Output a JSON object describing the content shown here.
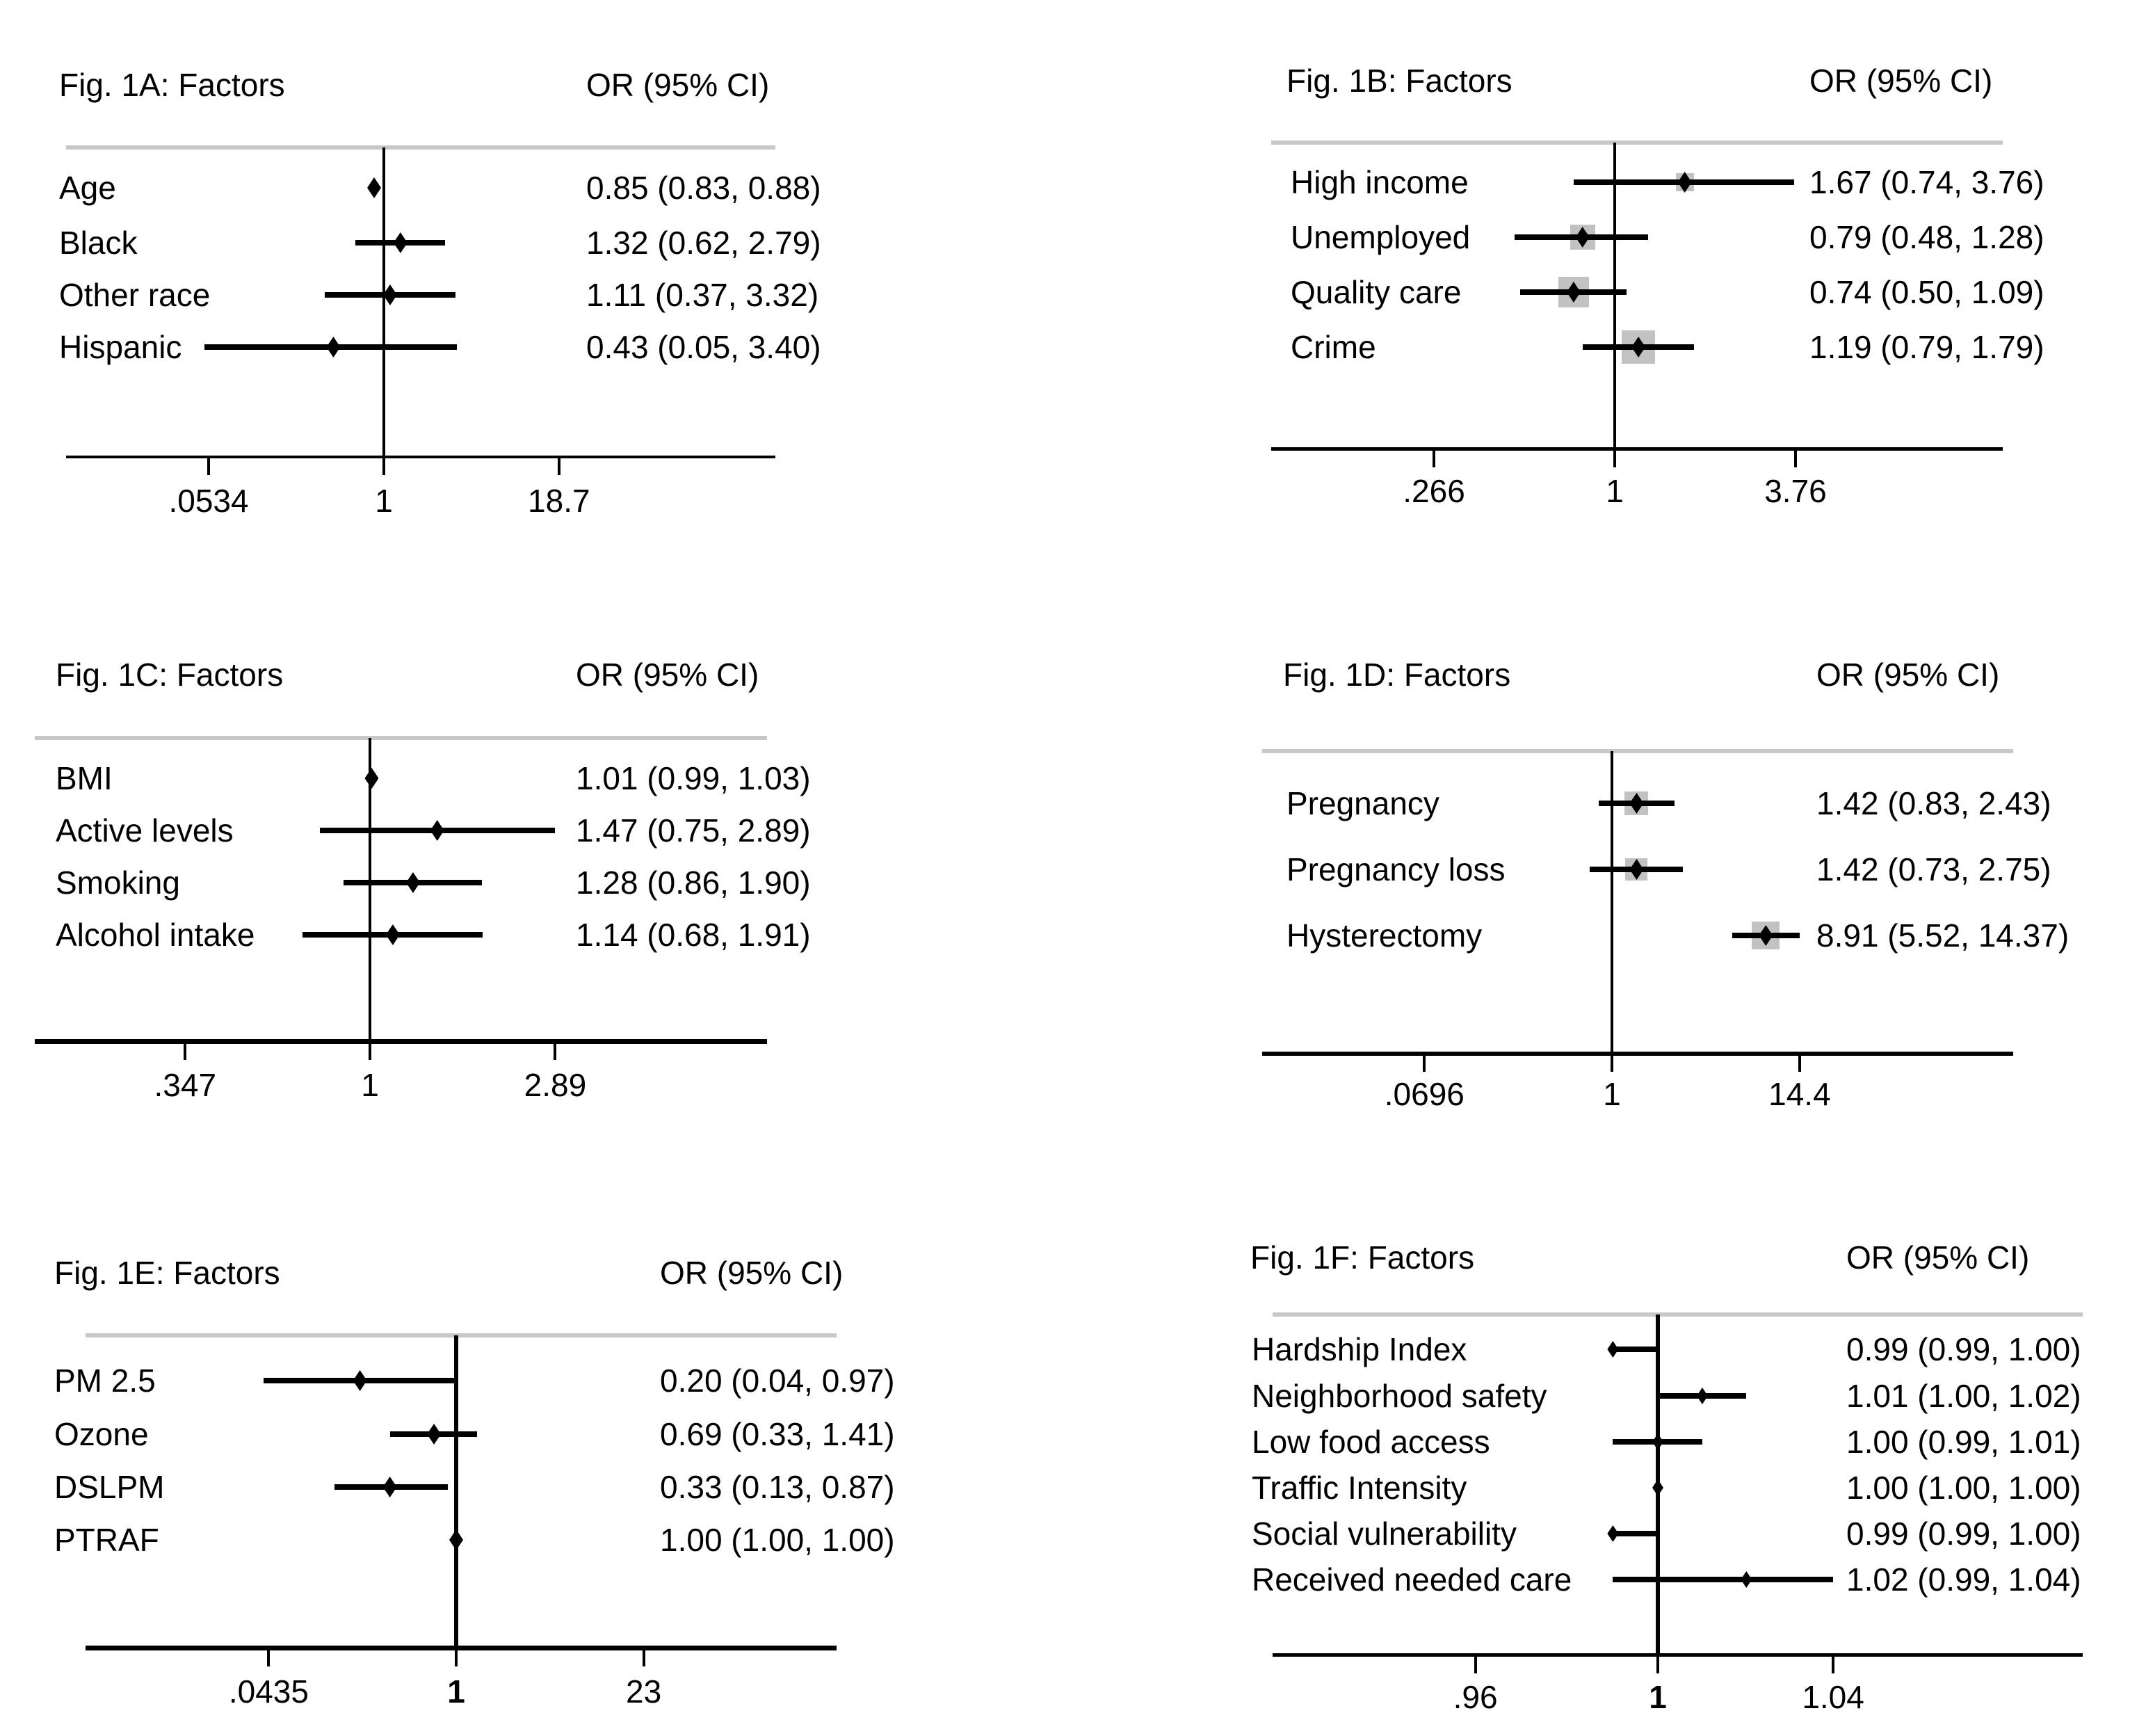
{
  "page": {
    "background": "#ffffff"
  },
  "colors": {
    "text": "#000000",
    "line_black": "#000000",
    "header_rule_gray": "#c8c8c8",
    "weight_box_gray": "#c2c2c2"
  },
  "chart_data": [
    {
      "panel": "1A",
      "type": "scatter",
      "subtype": "forest-plot",
      "title": "Fig. 1A: Factors",
      "or_header": "OR (95% CI)",
      "x_scale": "log",
      "xlim": [
        0.0534,
        18.7
      ],
      "reference_line_at": 1,
      "bold_center_tick": false,
      "x_ticks": [
        {
          "label": ".0534",
          "value": 0.0534
        },
        {
          "label": "1",
          "value": 1
        },
        {
          "label": "18.7",
          "value": 18.7
        }
      ],
      "rows": [
        {
          "label": "Age",
          "or": 0.85,
          "ci_low": 0.83,
          "ci_high": 0.88,
          "display": "0.85 (0.83, 0.88)",
          "weight_box_size": 0
        },
        {
          "label": "Black",
          "or": 1.32,
          "ci_low": 0.62,
          "ci_high": 2.79,
          "display": "1.32 (0.62, 2.79)",
          "weight_box_size": 0
        },
        {
          "label": "Other race",
          "or": 1.11,
          "ci_low": 0.37,
          "ci_high": 3.32,
          "display": "1.11 (0.37, 3.32)",
          "weight_box_size": 0
        },
        {
          "label": "Hispanic",
          "or": 0.43,
          "ci_low": 0.05,
          "ci_high": 3.4,
          "display": "0.43 (0.05, 3.40)",
          "weight_box_size": 0
        }
      ]
    },
    {
      "panel": "1B",
      "type": "scatter",
      "subtype": "forest-plot",
      "title": "Fig. 1B: Factors",
      "or_header": "OR (95% CI)",
      "x_scale": "log",
      "xlim": [
        0.266,
        3.76
      ],
      "reference_line_at": 1,
      "bold_center_tick": false,
      "x_ticks": [
        {
          "label": ".266",
          "value": 0.266
        },
        {
          "label": "1",
          "value": 1
        },
        {
          "label": "3.76",
          "value": 3.76
        }
      ],
      "rows": [
        {
          "label": "High income",
          "or": 1.67,
          "ci_low": 0.74,
          "ci_high": 3.76,
          "display": "1.67 (0.74, 3.76)",
          "weight_box_size": 26
        },
        {
          "label": "Unemployed",
          "or": 0.79,
          "ci_low": 0.48,
          "ci_high": 1.28,
          "display": "0.79 (0.48, 1.28)",
          "weight_box_size": 36
        },
        {
          "label": "Quality care",
          "or": 0.74,
          "ci_low": 0.5,
          "ci_high": 1.09,
          "display": "0.74 (0.50, 1.09)",
          "weight_box_size": 44
        },
        {
          "label": "Crime",
          "or": 1.19,
          "ci_low": 0.79,
          "ci_high": 1.79,
          "display": "1.19 (0.79, 1.79)",
          "weight_box_size": 48
        }
      ]
    },
    {
      "panel": "1C",
      "type": "scatter",
      "subtype": "forest-plot",
      "title": "Fig. 1C: Factors",
      "or_header": "OR (95% CI)",
      "x_scale": "log",
      "xlim": [
        0.347,
        2.89
      ],
      "reference_line_at": 1,
      "bold_center_tick": false,
      "x_ticks": [
        {
          "label": ".347",
          "value": 0.347
        },
        {
          "label": "1",
          "value": 1
        },
        {
          "label": "2.89",
          "value": 2.89
        }
      ],
      "rows": [
        {
          "label": "BMI",
          "or": 1.01,
          "ci_low": 0.99,
          "ci_high": 1.03,
          "display": "1.01 (0.99, 1.03)",
          "weight_box_size": 0
        },
        {
          "label": "Active levels",
          "or": 1.47,
          "ci_low": 0.75,
          "ci_high": 2.89,
          "display": "1.47 (0.75, 2.89)",
          "weight_box_size": 0
        },
        {
          "label": "Smoking",
          "or": 1.28,
          "ci_low": 0.86,
          "ci_high": 1.9,
          "display": "1.28 (0.86, 1.90)",
          "weight_box_size": 0
        },
        {
          "label": "Alcohol intake",
          "or": 1.14,
          "ci_low": 0.68,
          "ci_high": 1.91,
          "display": "1.14 (0.68, 1.91)",
          "weight_box_size": 0
        }
      ]
    },
    {
      "panel": "1D",
      "type": "scatter",
      "subtype": "forest-plot",
      "title": "Fig. 1D: Factors",
      "or_header": "OR (95% CI)",
      "x_scale": "log",
      "xlim": [
        0.0696,
        14.4
      ],
      "reference_line_at": 1,
      "bold_center_tick": false,
      "x_ticks": [
        {
          "label": ".0696",
          "value": 0.0696
        },
        {
          "label": "1",
          "value": 1
        },
        {
          "label": "14.4",
          "value": 14.4
        }
      ],
      "rows": [
        {
          "label": "Pregnancy",
          "or": 1.42,
          "ci_low": 0.83,
          "ci_high": 2.43,
          "display": "1.42 (0.83, 2.43)",
          "weight_box_size": 34
        },
        {
          "label": "Pregnancy loss",
          "or": 1.42,
          "ci_low": 0.73,
          "ci_high": 2.75,
          "display": "1.42 (0.73, 2.75)",
          "weight_box_size": 32
        },
        {
          "label": "Hysterectomy",
          "or": 8.91,
          "ci_low": 5.52,
          "ci_high": 14.37,
          "display": "8.91 (5.52, 14.37)",
          "weight_box_size": 40
        }
      ]
    },
    {
      "panel": "1E",
      "type": "scatter",
      "subtype": "forest-plot",
      "title": "Fig. 1E: Factors",
      "or_header": "OR (95% CI)",
      "x_scale": "log",
      "xlim": [
        0.0435,
        23
      ],
      "reference_line_at": 1,
      "bold_center_tick": true,
      "x_ticks": [
        {
          "label": ".0435",
          "value": 0.0435
        },
        {
          "label": "1",
          "value": 1
        },
        {
          "label": "23",
          "value": 23
        }
      ],
      "rows": [
        {
          "label": "PM 2.5",
          "or": 0.2,
          "ci_low": 0.04,
          "ci_high": 0.97,
          "display": "0.20 (0.04, 0.97)",
          "weight_box_size": 0
        },
        {
          "label": "Ozone",
          "or": 0.69,
          "ci_low": 0.33,
          "ci_high": 1.41,
          "display": "0.69 (0.33, 1.41)",
          "weight_box_size": 0
        },
        {
          "label": "DSLPM",
          "or": 0.33,
          "ci_low": 0.13,
          "ci_high": 0.87,
          "display": "0.33 (0.13, 0.87)",
          "weight_box_size": 0
        },
        {
          "label": "PTRAF",
          "or": 1.0,
          "ci_low": 1.0,
          "ci_high": 1.0,
          "display": "1.00 (1.00, 1.00)",
          "weight_box_size": 0
        }
      ]
    },
    {
      "panel": "1F",
      "type": "scatter",
      "subtype": "forest-plot",
      "title": "Fig. 1F: Factors",
      "or_header": "OR (95% CI)",
      "x_scale": "log",
      "xlim": [
        0.96,
        1.04
      ],
      "reference_line_at": 1,
      "bold_center_tick": true,
      "x_ticks": [
        {
          "label": ".96",
          "value": 0.96
        },
        {
          "label": "1",
          "value": 1
        },
        {
          "label": "1.04",
          "value": 1.04
        }
      ],
      "rows": [
        {
          "label": "Hardship Index",
          "or": 0.99,
          "ci_low": 0.99,
          "ci_high": 1.0,
          "display": "0.99 (0.99, 1.00)",
          "weight_box_size": 0
        },
        {
          "label": "Neighborhood safety",
          "or": 1.01,
          "ci_low": 1.0,
          "ci_high": 1.02,
          "display": "1.01 (1.00, 1.02)",
          "weight_box_size": 0
        },
        {
          "label": "Low food access",
          "or": 1.0,
          "ci_low": 0.99,
          "ci_high": 1.01,
          "display": "1.00 (0.99, 1.01)",
          "weight_box_size": 0
        },
        {
          "label": "Traffic Intensity",
          "or": 1.0,
          "ci_low": 1.0,
          "ci_high": 1.0,
          "display": "1.00 (1.00, 1.00)",
          "weight_box_size": 0
        },
        {
          "label": "Social vulnerability",
          "or": 0.99,
          "ci_low": 0.99,
          "ci_high": 1.0,
          "display": "0.99 (0.99, 1.00)",
          "weight_box_size": 0
        },
        {
          "label": "Received needed care",
          "or": 1.02,
          "ci_low": 0.99,
          "ci_high": 1.04,
          "display": "1.02 (0.99, 1.04)",
          "weight_box_size": 0
        }
      ]
    }
  ]
}
